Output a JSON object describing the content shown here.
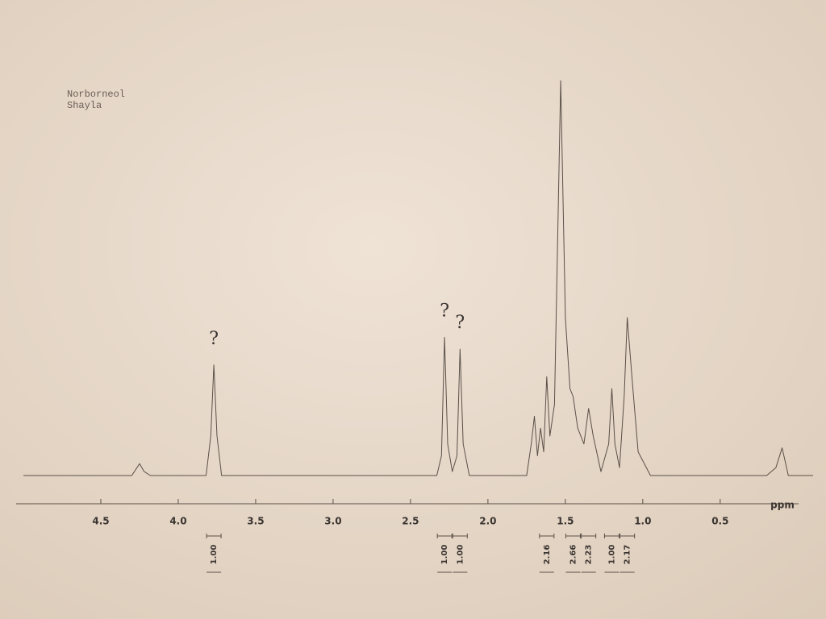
{
  "chart_data": {
    "type": "line",
    "title": "Norborneol",
    "subtitle": "Shayla",
    "xlabel": "ppm",
    "xlim": [
      5.0,
      -0.1
    ],
    "ylim": [
      0,
      100
    ],
    "xticks": [
      4.5,
      {
        "value": 4,
        "label": "4.0"
      },
      3.5,
      {
        "value": 3,
        "label": "3.0"
      },
      2.5,
      {
        "value": 2,
        "label": "2.0"
      },
      1.5,
      {
        "value": 1,
        "label": "1.0"
      },
      0.5
    ],
    "color": "#5a5048",
    "x": [
      5.0,
      4.3,
      4.25,
      4.22,
      4.18,
      3.82,
      3.79,
      3.77,
      3.75,
      3.72,
      2.33,
      2.3,
      2.28,
      2.26,
      2.23,
      2.2,
      2.18,
      2.16,
      2.12,
      1.75,
      1.72,
      1.7,
      1.68,
      1.66,
      1.64,
      1.62,
      1.6,
      1.57,
      1.53,
      1.5,
      1.47,
      1.45,
      1.42,
      1.38,
      1.35,
      1.32,
      1.27,
      1.22,
      1.2,
      1.18,
      1.15,
      1.12,
      1.1,
      1.07,
      1.03,
      0.95,
      0.2,
      0.14,
      0.1,
      0.06,
      -0.1
    ],
    "values": [
      0,
      0,
      3,
      1,
      0,
      0,
      10,
      28,
      10,
      0,
      0,
      5,
      35,
      8,
      1,
      5,
      32,
      8,
      0,
      0,
      8,
      15,
      5,
      12,
      6,
      25,
      10,
      18,
      100,
      40,
      22,
      20,
      12,
      8,
      17,
      10,
      1,
      8,
      22,
      8,
      2,
      20,
      40,
      25,
      6,
      0,
      0,
      2,
      7,
      0,
      0
    ],
    "integrals": {
      "x": [
        3.77,
        2.28,
        2.18,
        1.62,
        1.45,
        1.35,
        1.2,
        1.1
      ],
      "values": [
        1,
        1,
        1,
        2.16,
        2.66,
        2.23,
        1,
        2.17
      ],
      "value_labels": [
        "1.00",
        "1.00",
        "1.00",
        "2.16",
        "2.66",
        "2.23",
        "1.00",
        "2.17"
      ]
    },
    "annotations": [
      {
        "x": 3.77,
        "text": "?"
      },
      {
        "x": 2.28,
        "text": "?"
      },
      {
        "x": 2.18,
        "text": "?"
      }
    ]
  }
}
